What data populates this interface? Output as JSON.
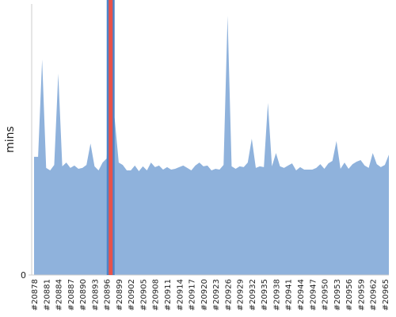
{
  "chart_data": {
    "type": "area",
    "ylabel": "mins",
    "categories": [
      "#20878",
      null,
      null,
      "#20881",
      null,
      null,
      "#20884",
      null,
      null,
      "#20887",
      null,
      null,
      "#20890",
      null,
      null,
      "#20893",
      null,
      null,
      "#20896",
      null,
      null,
      "#20899",
      null,
      null,
      "#20902",
      null,
      null,
      "#20905",
      null,
      null,
      "#20908",
      null,
      null,
      "#20911",
      null,
      null,
      "#20914",
      null,
      null,
      "#20917",
      null,
      null,
      "#20920",
      null,
      null,
      "#20923",
      null,
      null,
      "#20926",
      null,
      null,
      "#20929",
      null,
      null,
      "#20932",
      null,
      null,
      "#20935",
      null,
      null,
      "#20938",
      null,
      null,
      "#20941",
      null,
      null,
      "#20944",
      null,
      null,
      "#20947",
      null,
      null,
      "#20950",
      null,
      null,
      "#20953",
      null,
      null,
      "#20956",
      null,
      null,
      "#20959",
      null,
      null,
      "#20962",
      null,
      null,
      "#20965",
      null
    ],
    "values": [
      43.6,
      43.6,
      79.5,
      39.5,
      38.6,
      40.6,
      74.3,
      40.1,
      41.5,
      39.5,
      40.4,
      39.2,
      39.5,
      40.6,
      48.5,
      40.1,
      38.6,
      41.5,
      43.0,
      66.4,
      57.6,
      41.5,
      40.6,
      38.6,
      38.6,
      40.4,
      38.3,
      40.1,
      38.6,
      41.5,
      39.8,
      40.4,
      38.9,
      39.8,
      38.9,
      39.2,
      39.8,
      40.4,
      39.5,
      38.6,
      40.4,
      41.5,
      40.1,
      40.4,
      38.6,
      39.2,
      38.9,
      40.6,
      95.6,
      40.1,
      39.2,
      40.1,
      39.8,
      41.5,
      50.3,
      39.5,
      40.1,
      39.8,
      63.5,
      40.1,
      45.0,
      40.1,
      39.5,
      40.4,
      41.2,
      38.6,
      39.8,
      38.9,
      38.9,
      38.9,
      39.5,
      40.9,
      39.2,
      41.2,
      42.1,
      49.4,
      39.2,
      41.5,
      39.2,
      40.9,
      41.8,
      42.4,
      40.4,
      39.5,
      45.0,
      40.9,
      39.8,
      40.6,
      44.4
    ],
    "color": "#8fb2dc",
    "ylim": [
      0,
      100
    ],
    "yticks": [
      0
    ],
    "highlight": {
      "category_index": 19,
      "color": "#e8524a"
    }
  }
}
